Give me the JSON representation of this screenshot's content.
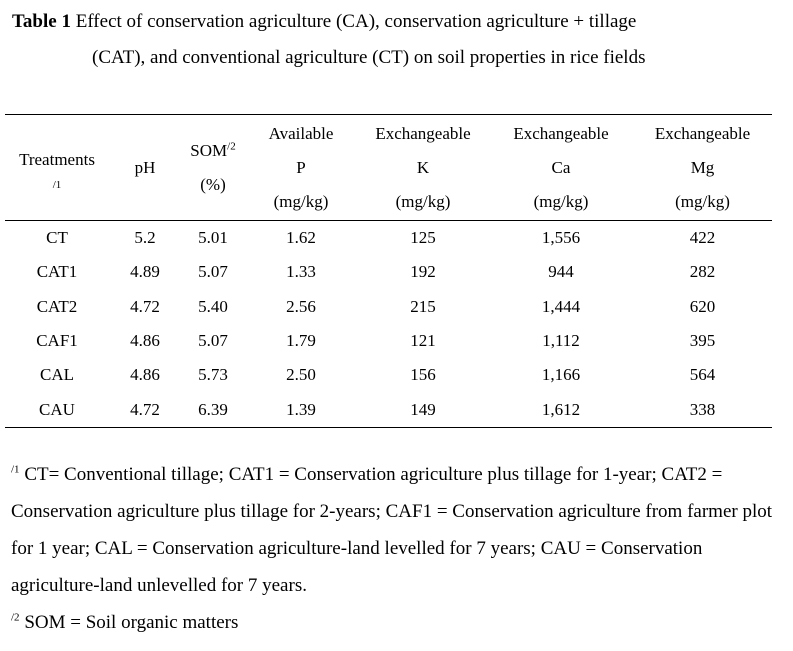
{
  "caption": {
    "label": "Table 1",
    "text_line1": "Effect of conservation agriculture (CA), conservation agriculture + tillage",
    "text_line2": "(CAT), and conventional agriculture (CT) on soil properties in rice fields"
  },
  "table": {
    "headers": {
      "treatments": {
        "label": "Treatments",
        "mark": "/1"
      },
      "ph": {
        "label": "pH"
      },
      "som": {
        "label": "SOM",
        "mark": "/2",
        "unit": "(%)"
      },
      "p": {
        "line1": "Available",
        "line2": "P",
        "unit": "(mg/kg)"
      },
      "k": {
        "line1": "Exchangeable",
        "line2": "K",
        "unit": "(mg/kg)"
      },
      "ca": {
        "line1": "Exchangeable",
        "line2": "Ca",
        "unit": "(mg/kg)"
      },
      "mg": {
        "line1": "Exchangeable",
        "line2": "Mg",
        "unit": "(mg/kg)"
      }
    },
    "rows": [
      {
        "treatment": "CT",
        "ph": "5.2",
        "som": "5.01",
        "p": "1.62",
        "k": "125",
        "ca": "1,556",
        "mg": "422"
      },
      {
        "treatment": "CAT1",
        "ph": "4.89",
        "som": "5.07",
        "p": "1.33",
        "k": "192",
        "ca": "944",
        "mg": "282"
      },
      {
        "treatment": "CAT2",
        "ph": "4.72",
        "som": "5.40",
        "p": "2.56",
        "k": "215",
        "ca": "1,444",
        "mg": "620"
      },
      {
        "treatment": "CAF1",
        "ph": "4.86",
        "som": "5.07",
        "p": "1.79",
        "k": "121",
        "ca": "1,112",
        "mg": "395"
      },
      {
        "treatment": "CAL",
        "ph": "4.86",
        "som": "5.73",
        "p": "2.50",
        "k": "156",
        "ca": "1,166",
        "mg": "564"
      },
      {
        "treatment": "CAU",
        "ph": "4.72",
        "som": "6.39",
        "p": "1.39",
        "k": "149",
        "ca": "1,612",
        "mg": "338"
      }
    ]
  },
  "footnotes": [
    {
      "mark": "/1",
      "text": "CT= Conventional tillage; CAT1 = Conservation agriculture plus tillage for 1-year; CAT2 = Conservation agriculture plus tillage for 2-years; CAF1 = Conservation agriculture from farmer plot for 1 year; CAL = Conservation agriculture-land levelled for 7 years; CAU = Conservation agriculture-land unlevelled for 7 years."
    },
    {
      "mark": "/2",
      "text": "SOM = Soil organic matters"
    }
  ]
}
